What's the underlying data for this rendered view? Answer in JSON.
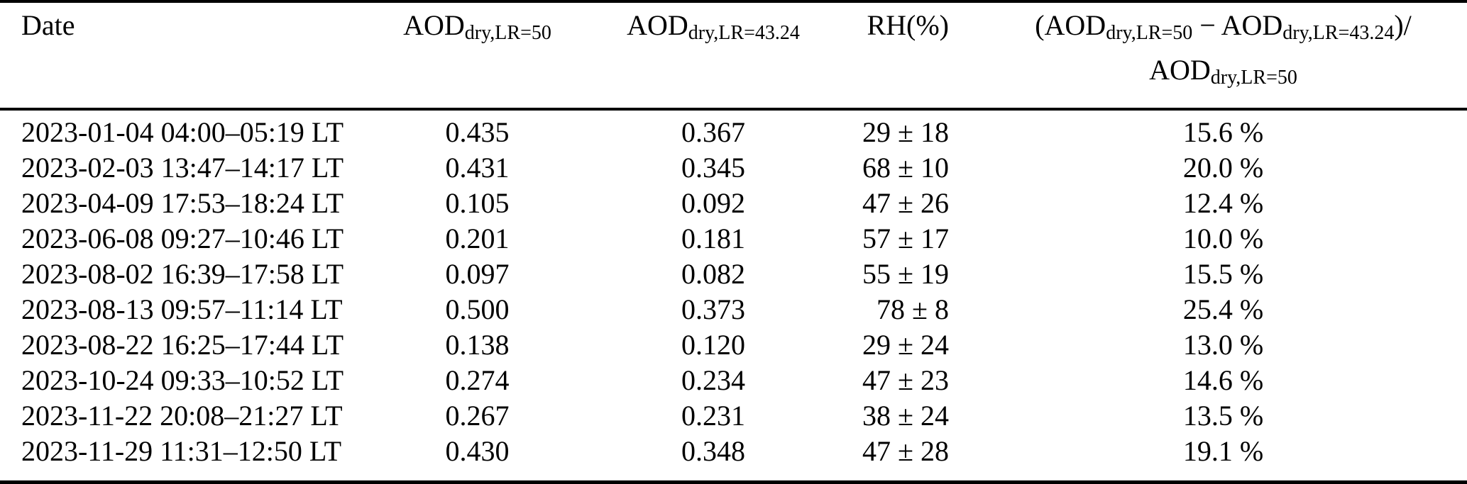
{
  "table": {
    "columns": [
      {
        "key": "date",
        "label": "Date"
      },
      {
        "key": "aod_lr50",
        "label_parts": [
          {
            "t": "AOD"
          },
          {
            "sub": "dry,LR=50"
          }
        ]
      },
      {
        "key": "aod_lr4324",
        "label_parts": [
          {
            "t": "AOD"
          },
          {
            "sub": "dry,LR=43.24"
          }
        ]
      },
      {
        "key": "rh",
        "label": "RH(%)"
      },
      {
        "key": "ratio",
        "label_line1_parts": [
          {
            "t": "(AOD"
          },
          {
            "sub": "dry,LR=50"
          },
          {
            "t": " − AOD"
          },
          {
            "sub": "dry,LR=43.24"
          },
          {
            "t": ")/"
          }
        ],
        "label_line2_parts": [
          {
            "t": "AOD"
          },
          {
            "sub": "dry,LR=50"
          }
        ]
      }
    ],
    "rows": [
      {
        "date": "2023-01-04 04:00–05:19 LT",
        "aod_lr50": "0.435",
        "aod_lr4324": "0.367",
        "rh": "29 ± 18",
        "ratio": "15.6 %"
      },
      {
        "date": "2023-02-03 13:47–14:17 LT",
        "aod_lr50": "0.431",
        "aod_lr4324": "0.345",
        "rh": "68 ± 10",
        "ratio": "20.0 %"
      },
      {
        "date": "2023-04-09 17:53–18:24 LT",
        "aod_lr50": "0.105",
        "aod_lr4324": "0.092",
        "rh": "47 ± 26",
        "ratio": "12.4 %"
      },
      {
        "date": "2023-06-08 09:27–10:46 LT",
        "aod_lr50": "0.201",
        "aod_lr4324": "0.181",
        "rh": "57 ± 17",
        "ratio": "10.0 %"
      },
      {
        "date": "2023-08-02 16:39–17:58 LT",
        "aod_lr50": "0.097",
        "aod_lr4324": "0.082",
        "rh": "55 ± 19",
        "ratio": "15.5 %"
      },
      {
        "date": "2023-08-13 09:57–11:14 LT",
        "aod_lr50": "0.500",
        "aod_lr4324": "0.373",
        "rh": "78 ± 8",
        "ratio": "25.4 %"
      },
      {
        "date": "2023-08-22 16:25–17:44 LT",
        "aod_lr50": "0.138",
        "aod_lr4324": "0.120",
        "rh": "29 ± 24",
        "ratio": "13.0 %"
      },
      {
        "date": "2023-10-24 09:33–10:52 LT",
        "aod_lr50": "0.274",
        "aod_lr4324": "0.234",
        "rh": "47 ± 23",
        "ratio": "14.6 %"
      },
      {
        "date": "2023-11-22 20:08–21:27 LT",
        "aod_lr50": "0.267",
        "aod_lr4324": "0.231",
        "rh": "38 ± 24",
        "ratio": "13.5 %"
      },
      {
        "date": "2023-11-29 11:31–12:50 LT",
        "aod_lr50": "0.430",
        "aod_lr4324": "0.348",
        "rh": "47 ± 28",
        "ratio": "19.1 %"
      }
    ]
  }
}
